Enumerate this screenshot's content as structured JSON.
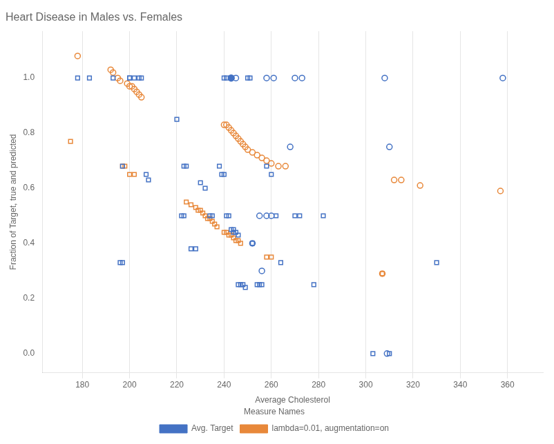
{
  "chart_data": {
    "type": "scatter",
    "title": "Heart Disease in Males vs. Females",
    "xlabel": "Average Cholesterol",
    "ylabel": "Fraction of Target, true and predicted",
    "xlim": [
      163,
      375
    ],
    "ylim": [
      -0.07,
      1.17
    ],
    "xticks": [
      180,
      200,
      220,
      240,
      260,
      280,
      300,
      320,
      340,
      360
    ],
    "yticks": [
      {
        "value": 0.0,
        "label": "0.0"
      },
      0.2,
      0.4,
      0.6,
      0.8,
      {
        "value": 1.0,
        "label": "1.0"
      }
    ],
    "grid": "x",
    "legend": "bottom",
    "legend_title": "Measure Names",
    "series": [
      {
        "name": "Avg. Target",
        "color": "#4472c4",
        "marker": "open_square",
        "x": [
          178,
          183,
          193,
          196,
          197,
          197,
          200,
          200,
          202,
          204,
          205,
          207,
          208,
          220,
          222,
          223,
          223,
          224,
          226,
          228,
          230,
          232,
          234,
          235,
          238,
          239,
          240,
          240,
          241,
          241,
          242,
          243,
          244,
          244,
          245,
          246,
          246,
          247,
          248,
          249,
          250,
          251,
          252,
          254,
          255,
          256,
          258,
          260,
          262,
          264,
          270,
          272,
          278,
          282,
          303,
          310,
          330
        ],
        "values": [
          1.0,
          1.0,
          1.0,
          0.33,
          0.33,
          0.68,
          1.0,
          1.0,
          1.0,
          1.0,
          1.0,
          0.65,
          0.63,
          0.85,
          0.5,
          0.5,
          0.68,
          0.68,
          0.38,
          0.38,
          0.62,
          0.6,
          0.5,
          0.5,
          0.68,
          0.65,
          0.65,
          1.0,
          1.0,
          0.5,
          0.5,
          0.45,
          0.45,
          0.44,
          0.44,
          0.43,
          0.25,
          0.25,
          0.25,
          0.24,
          1.0,
          1.0,
          0.4,
          0.25,
          0.25,
          0.25,
          0.68,
          0.65,
          0.5,
          0.33,
          0.5,
          0.5,
          0.25,
          0.5,
          0.0,
          0.0,
          0.33
        ]
      },
      {
        "name": "lambda=0.01, augmentation=on",
        "color": "#e8883a",
        "marker": "open_square",
        "x": [
          175,
          197,
          198,
          200,
          202,
          224,
          226,
          228,
          229,
          230,
          231,
          232,
          233,
          234,
          235,
          236,
          237,
          240,
          241,
          242,
          243,
          244,
          245,
          246,
          247,
          258,
          260,
          307
        ],
        "values": [
          0.77,
          0.68,
          0.68,
          0.65,
          0.65,
          0.55,
          0.54,
          0.53,
          0.52,
          0.52,
          0.51,
          0.5,
          0.49,
          0.49,
          0.48,
          0.47,
          0.46,
          0.44,
          0.44,
          0.43,
          0.43,
          0.42,
          0.41,
          0.41,
          0.4,
          0.35,
          0.35,
          0.29
        ]
      },
      {
        "name": "lambda=0.01, augmentation=on",
        "color": "#e8883a",
        "marker": "open_circle",
        "x": [
          178,
          192,
          193,
          195,
          196,
          199,
          200,
          201,
          202,
          203,
          204,
          205,
          240,
          241,
          242,
          243,
          244,
          245,
          246,
          247,
          248,
          249,
          250,
          252,
          254,
          256,
          258,
          260,
          263,
          266,
          312,
          315,
          323,
          357,
          307
        ],
        "values": [
          1.08,
          1.03,
          1.02,
          1.0,
          0.99,
          0.98,
          0.97,
          0.97,
          0.96,
          0.95,
          0.94,
          0.93,
          0.83,
          0.83,
          0.82,
          0.81,
          0.8,
          0.79,
          0.78,
          0.77,
          0.76,
          0.75,
          0.74,
          0.73,
          0.72,
          0.71,
          0.7,
          0.69,
          0.68,
          0.68,
          0.63,
          0.63,
          0.61,
          0.59,
          0.29
        ]
      },
      {
        "name": "Avg. Target",
        "color": "#4472c4",
        "marker": "open_circle",
        "x": [
          243,
          245,
          258,
          261,
          270,
          273,
          308,
          358,
          268,
          310,
          255,
          258,
          260,
          252,
          256,
          309
        ],
        "values": [
          1.0,
          1.0,
          1.0,
          1.0,
          1.0,
          1.0,
          1.0,
          1.0,
          0.75,
          0.75,
          0.5,
          0.5,
          0.5,
          0.4,
          0.3,
          0.0
        ]
      },
      {
        "name": "Avg. Target",
        "color": "#4472c4",
        "marker": "filled_circle",
        "x": [
          243
        ],
        "values": [
          1.0
        ]
      }
    ]
  }
}
